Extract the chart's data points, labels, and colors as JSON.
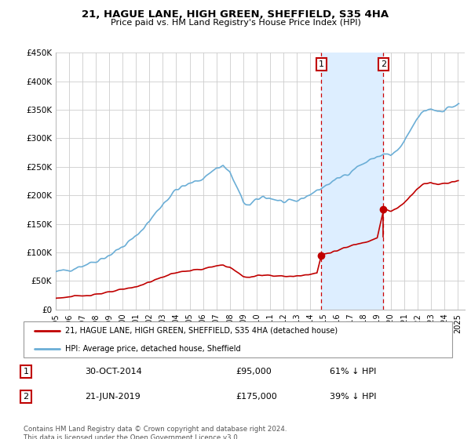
{
  "title": "21, HAGUE LANE, HIGH GREEN, SHEFFIELD, S35 4HA",
  "subtitle": "Price paid vs. HM Land Registry's House Price Index (HPI)",
  "footer": "Contains HM Land Registry data © Crown copyright and database right 2024.\nThis data is licensed under the Open Government Licence v3.0.",
  "legend_line1": "21, HAGUE LANE, HIGH GREEN, SHEFFIELD, S35 4HA (detached house)",
  "legend_line2": "HPI: Average price, detached house, Sheffield",
  "annotation1_label": "1",
  "annotation1_date": "30-OCT-2014",
  "annotation1_price": "£95,000",
  "annotation1_hpi": "61% ↓ HPI",
  "annotation2_label": "2",
  "annotation2_date": "21-JUN-2019",
  "annotation2_price": "£175,000",
  "annotation2_hpi": "39% ↓ HPI",
  "hpi_color": "#6baed6",
  "price_color": "#c00000",
  "vline_color": "#cc0000",
  "annotation_box_color": "#c00000",
  "background_color": "#ffffff",
  "grid_color": "#cccccc",
  "shaded_region_color": "#ddeeff",
  "ylim": [
    0,
    450000
  ],
  "yticks": [
    0,
    50000,
    100000,
    150000,
    200000,
    250000,
    300000,
    350000,
    400000,
    450000
  ],
  "ytick_labels": [
    "£0",
    "£50K",
    "£100K",
    "£150K",
    "£200K",
    "£250K",
    "£300K",
    "£350K",
    "£400K",
    "£450K"
  ],
  "vline1_x": 2014.83,
  "vline2_x": 2019.46,
  "sale1_x": 2014.83,
  "sale1_y": 95000,
  "sale2_x": 2019.46,
  "sale2_y": 175000,
  "xlim_start": 1995.0,
  "xlim_end": 2025.5,
  "xticks": [
    1995,
    1996,
    1997,
    1998,
    1999,
    2000,
    2001,
    2002,
    2003,
    2004,
    2005,
    2006,
    2007,
    2008,
    2009,
    2010,
    2011,
    2012,
    2013,
    2014,
    2015,
    2016,
    2017,
    2018,
    2019,
    2020,
    2021,
    2022,
    2023,
    2024,
    2025
  ]
}
